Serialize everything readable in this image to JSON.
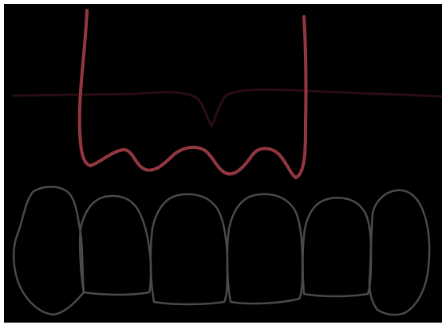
{
  "colors": {
    "background": "#000000",
    "frame": "#ffffff",
    "gum_line": "#9a3a38",
    "gum_line_accent": "#7d2b6b",
    "horizontal_line": "#2a0d14",
    "tooth_outline": "#4a4a4a"
  },
  "diagram": {
    "tooth_count": 6,
    "elements": [
      "horizontal-reference-line",
      "gum-contour-line",
      "tooth-outlines"
    ]
  }
}
